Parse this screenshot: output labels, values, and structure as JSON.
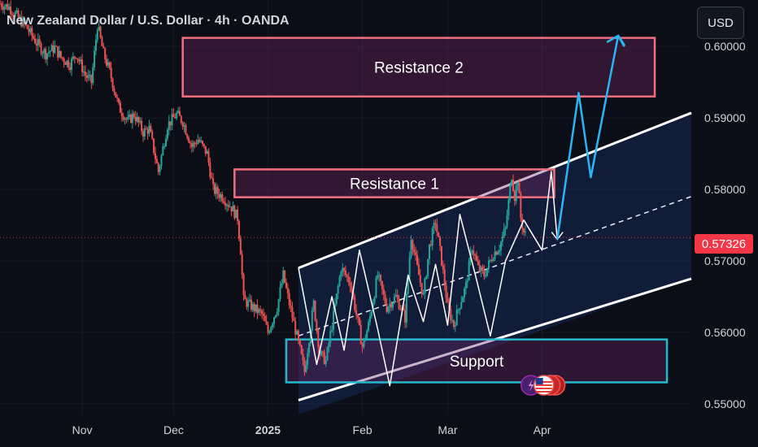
{
  "chart_data": {
    "type": "candlestick",
    "title": "New Zealand Dollar / U.S. Dollar · 4h · OANDA",
    "currency": "USD",
    "last_price_label": "0.57326",
    "last_price": 0.57326,
    "y_ticks": [
      "0.60000",
      "0.59000",
      "0.58000",
      "0.57000",
      "0.56000",
      "0.55000"
    ],
    "y_range": [
      0.5485,
      0.6065
    ],
    "x_ticks": [
      {
        "label": "Nov",
        "t": 30
      },
      {
        "label": "Dec",
        "t": 60
      },
      {
        "label": "2025",
        "t": 91,
        "bold": true
      },
      {
        "label": "Feb",
        "t": 122
      },
      {
        "label": "Mar",
        "t": 150
      },
      {
        "label": "Apr",
        "t": 181
      }
    ],
    "x_range": [
      3,
      230
    ],
    "price_path": [
      [
        3,
        0.606
      ],
      [
        6,
        0.6055
      ],
      [
        9,
        0.604
      ],
      [
        12,
        0.6025
      ],
      [
        15,
        0.6005
      ],
      [
        18,
        0.599
      ],
      [
        21,
        0.5998
      ],
      [
        23,
        0.5985
      ],
      [
        26,
        0.5975
      ],
      [
        28,
        0.599
      ],
      [
        31,
        0.596
      ],
      [
        33,
        0.595
      ],
      [
        35,
        0.603
      ],
      [
        37,
        0.599
      ],
      [
        39,
        0.5965
      ],
      [
        42,
        0.5915
      ],
      [
        45,
        0.5895
      ],
      [
        47,
        0.5905
      ],
      [
        50,
        0.588
      ],
      [
        52,
        0.5885
      ],
      [
        55,
        0.5825
      ],
      [
        58,
        0.589
      ],
      [
        61,
        0.5905
      ],
      [
        63,
        0.5895
      ],
      [
        66,
        0.586
      ],
      [
        68,
        0.587
      ],
      [
        71,
        0.585
      ],
      [
        73,
        0.58
      ],
      [
        76,
        0.579
      ],
      [
        79,
        0.5775
      ],
      [
        81,
        0.576
      ],
      [
        82,
        0.5715
      ],
      [
        83,
        0.5645
      ],
      [
        86,
        0.5635
      ],
      [
        89,
        0.5625
      ],
      [
        91,
        0.56
      ],
      [
        94,
        0.5635
      ],
      [
        96,
        0.568
      ],
      [
        98,
        0.564
      ],
      [
        101,
        0.5585
      ],
      [
        103,
        0.5545
      ],
      [
        106,
        0.564
      ],
      [
        108,
        0.557
      ],
      [
        110,
        0.556
      ],
      [
        112,
        0.561
      ],
      [
        115,
        0.569
      ],
      [
        118,
        0.567
      ],
      [
        120,
        0.5625
      ],
      [
        122,
        0.558
      ],
      [
        124,
        0.561
      ],
      [
        127,
        0.568
      ],
      [
        130,
        0.5635
      ],
      [
        133,
        0.565
      ],
      [
        136,
        0.562
      ],
      [
        138,
        0.5735
      ],
      [
        140,
        0.569
      ],
      [
        142,
        0.565
      ],
      [
        144,
        0.572
      ],
      [
        146,
        0.5755
      ],
      [
        148,
        0.57
      ],
      [
        150,
        0.5635
      ],
      [
        152,
        0.561
      ],
      [
        154,
        0.564
      ],
      [
        156,
        0.5665
      ],
      [
        158,
        0.572
      ],
      [
        160,
        0.569
      ],
      [
        162,
        0.568
      ],
      [
        165,
        0.571
      ],
      [
        167,
        0.572
      ],
      [
        169,
        0.5745
      ],
      [
        171,
        0.582
      ],
      [
        172,
        0.579
      ],
      [
        173,
        0.5815
      ],
      [
        174,
        0.576
      ],
      [
        175,
        0.574
      ],
      [
        176,
        0.5733
      ]
    ],
    "zones": [
      {
        "name": "Resistance 2",
        "t0": 63,
        "t1": 218,
        "p0": 0.593,
        "p1": 0.6012,
        "color": "#f0707f",
        "fill": "rgba(120,40,100,0.35)"
      },
      {
        "name": "Resistance 1",
        "t0": 80,
        "t1": 185,
        "p0": 0.5789,
        "p1": 0.5828,
        "color": "#f0707f",
        "fill": "rgba(120,40,100,0.35)"
      },
      {
        "name": "Support",
        "t0": 97,
        "t1": 222,
        "p0": 0.553,
        "p1": 0.559,
        "color": "#27b8cc",
        "fill": "rgba(110,40,110,0.35)"
      }
    ],
    "channel": {
      "upper": [
        [
          101,
          0.569
        ],
        [
          230,
          0.5907
        ]
      ],
      "middle": [
        [
          101,
          0.5595
        ],
        [
          230,
          0.579
        ]
      ],
      "lower": [
        [
          101,
          0.5505
        ],
        [
          230,
          0.5675
        ]
      ],
      "fill_color": "rgba(30,55,120,0.35)"
    },
    "white_zigzag": [
      [
        101,
        0.569
      ],
      [
        107,
        0.5555
      ],
      [
        112,
        0.565
      ],
      [
        116,
        0.5575
      ],
      [
        121,
        0.5715
      ],
      [
        127,
        0.5605
      ],
      [
        131,
        0.5525
      ],
      [
        137,
        0.568
      ],
      [
        142,
        0.5615
      ],
      [
        146,
        0.5695
      ],
      [
        150,
        0.561
      ],
      [
        154,
        0.5765
      ],
      [
        159,
        0.5682
      ],
      [
        164,
        0.5595
      ],
      [
        169,
        0.57
      ],
      [
        175,
        0.5757
      ],
      [
        181,
        0.5715
      ],
      [
        184,
        0.5825
      ],
      [
        186,
        0.573
      ]
    ],
    "blue_projection": [
      [
        186,
        0.573
      ],
      [
        193,
        0.5935
      ],
      [
        197,
        0.5817
      ],
      [
        206,
        0.6015
      ],
      [
        208,
        0.6
      ]
    ]
  }
}
